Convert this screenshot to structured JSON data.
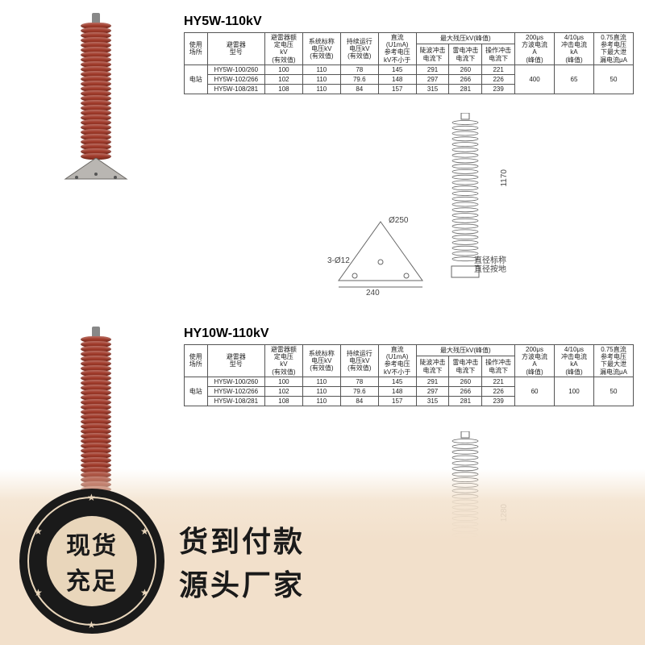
{
  "colors": {
    "shed": "#a03a2a",
    "border": "#555555",
    "text": "#222222",
    "diagram": "#777777",
    "banner_bg": "#f2e0cb",
    "seal_dark": "#1a1a1a",
    "seal_light": "#e9d6bb"
  },
  "sections": [
    {
      "title": "HY5W-110kV",
      "diagram": {
        "height_mm": "1170",
        "base_w": "240",
        "base_diag": "Ø250",
        "bolt": "3-Ø12",
        "note": "直径标称\n直径按地"
      }
    },
    {
      "title": "HY10W-110kV",
      "diagram": {
        "height_mm": "1280"
      }
    }
  ],
  "table_header": {
    "h_loc": "使用\n场所",
    "h_model": "避雷器\n型号",
    "h_rated": "避雷器额\n定电压\nkV\n(有效值)",
    "h_sys": "系统标称\n电压kV\n(有效值)",
    "h_cont": "持续运行\n电压kV\n(有效值)",
    "h_dc": "直流\n(U1mA)\n参考电压\nkV不小于",
    "h_res_group": "最大残压kV(峰值)",
    "h_res1": "陡波冲击\n电流下",
    "h_res2": "雷电冲击\n电流下",
    "h_res3": "操作冲击\n电流下",
    "h_200us": "200μs\n方波电流\nA\n(峰值)",
    "h_410us": "4/10μs\n冲击电流\nkA\n(峰值)",
    "h_075": "0.75直流\n参考电压\n下最大泄\n漏电流μA"
  },
  "table1": {
    "loc": "电站",
    "rows": [
      [
        "HY5W-100/260",
        "100",
        "110",
        "78",
        "145",
        "291",
        "260",
        "221"
      ],
      [
        "HY5W-102/266",
        "102",
        "110",
        "79.6",
        "148",
        "297",
        "266",
        "226"
      ],
      [
        "HY5W-108/281",
        "108",
        "110",
        "84",
        "157",
        "315",
        "281",
        "239"
      ]
    ],
    "tail": [
      "400",
      "65",
      "50"
    ]
  },
  "table2": {
    "loc": "电站",
    "rows": [
      [
        "HY5W-100/260",
        "100",
        "110",
        "78",
        "145",
        "291",
        "260",
        "221"
      ],
      [
        "HY5W-102/266",
        "102",
        "110",
        "79.6",
        "148",
        "297",
        "266",
        "226"
      ],
      [
        "HY5W-108/281",
        "108",
        "110",
        "84",
        "157",
        "315",
        "281",
        "239"
      ]
    ],
    "tail": [
      "60",
      "100",
      "50"
    ]
  },
  "banner": {
    "seal_top": "现货",
    "seal_bottom": "充足",
    "line1": "货到付款",
    "line2": "源头厂家"
  }
}
